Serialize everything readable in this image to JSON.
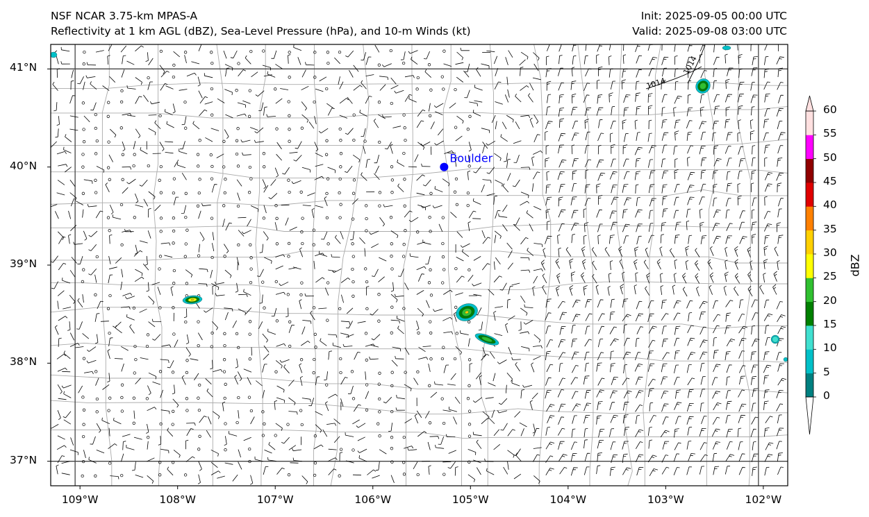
{
  "title": {
    "model": "NSF NCAR 3.75-km MPAS-A",
    "fields": "Reflectivity at 1 km AGL (dBZ), Sea-Level Pressure (hPa), and 10-m Winds (kt)",
    "init": "Init: 2025-09-05 00:00 UTC",
    "valid": "Valid: 2025-09-08 03:00 UTC"
  },
  "map": {
    "lon_range": [
      -109.3,
      -101.75
    ],
    "lat_range": [
      36.75,
      41.25
    ],
    "lat_ticks": [
      {
        "value": 41,
        "label": "41°N"
      },
      {
        "value": 40,
        "label": "40°N"
      },
      {
        "value": 39,
        "label": "39°N"
      },
      {
        "value": 38,
        "label": "38°N"
      },
      {
        "value": 37,
        "label": "37°N"
      }
    ],
    "lon_ticks": [
      {
        "value": -109,
        "label": "109°W"
      },
      {
        "value": -108,
        "label": "108°W"
      },
      {
        "value": -107,
        "label": "107°W"
      },
      {
        "value": -106,
        "label": "106°W"
      },
      {
        "value": -105,
        "label": "105°W"
      },
      {
        "value": -104,
        "label": "104°W"
      },
      {
        "value": -103,
        "label": "103°W"
      },
      {
        "value": -102,
        "label": "102°W"
      }
    ],
    "city": {
      "name": "Boulder",
      "lon": -105.27,
      "lat": 40.0,
      "color": "#0000ff"
    },
    "isobar_labels": [
      "1014",
      "1014"
    ],
    "state_border_color": "#444444",
    "county_border_color": "#aaaaaa"
  },
  "colorbar": {
    "label": "dBZ",
    "ticks": [
      "0",
      "5",
      "10",
      "15",
      "20",
      "25",
      "30",
      "35",
      "40",
      "45",
      "50",
      "55",
      "60"
    ],
    "colors": [
      "#008080",
      "#00c0c8",
      "#40e0d0",
      "#008000",
      "#30c030",
      "#ffff00",
      "#ffd000",
      "#ff8000",
      "#e00000",
      "#900000",
      "#ff00ff",
      "#ffe0e0"
    ]
  }
}
